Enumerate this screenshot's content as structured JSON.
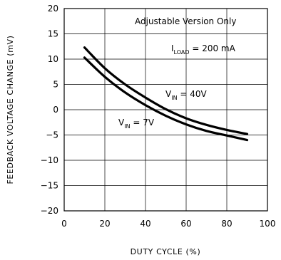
{
  "chart_data": {
    "type": "line",
    "xlabel": "DUTY CYCLE (%)",
    "ylabel": "FEEDBACK VOLTAGE CHANGE (mV)",
    "xlim": [
      0,
      100
    ],
    "ylim": [
      -20,
      20
    ],
    "x_ticks": [
      "0",
      "20",
      "40",
      "60",
      "80",
      "100"
    ],
    "y_ticks": [
      "20",
      "15",
      "10",
      "5",
      "0",
      "−5",
      "−10",
      "−15",
      "−20"
    ],
    "grid": true,
    "series": [
      {
        "label_main": "V",
        "label_sub": "IN",
        "label_rest": " = 40V",
        "x": [
          10,
          20,
          30,
          40,
          50,
          60,
          70,
          80,
          90
        ],
        "y": [
          12.3,
          8.2,
          5.0,
          2.4,
          0.1,
          -1.7,
          -3.0,
          -4.0,
          -4.8
        ]
      },
      {
        "label_main": "V",
        "label_sub": "IN",
        "label_rest": " = 7V",
        "x": [
          10,
          20,
          30,
          40,
          50,
          60,
          70,
          80,
          90
        ],
        "y": [
          10.3,
          6.5,
          3.4,
          0.9,
          -1.2,
          -2.9,
          -4.2,
          -5.1,
          -6.0
        ]
      }
    ],
    "annotations": {
      "version": "Adjustable Version Only",
      "load_main": "I",
      "load_sub": "LOAD",
      "load_rest": " = 200 mA"
    }
  }
}
